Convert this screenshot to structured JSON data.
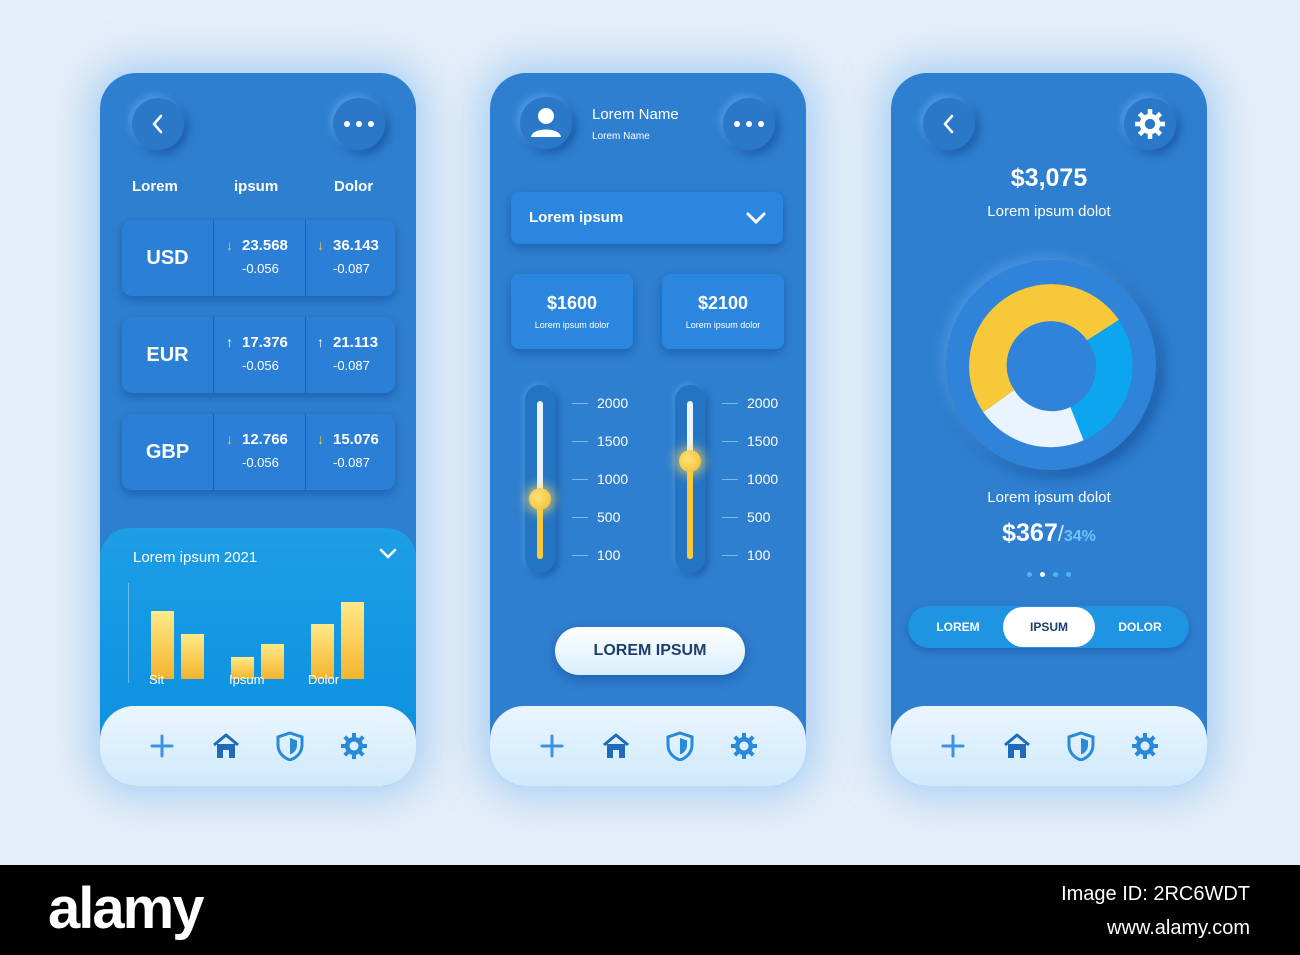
{
  "phone1": {
    "col_headers": [
      "Lorem",
      "ipsum",
      "Dolor"
    ],
    "currencies": [
      {
        "code": "USD",
        "v1": "23.568",
        "c1": "-0.056",
        "d1": "down",
        "v2": "36.143",
        "c2": "-0.087",
        "d2": "down"
      },
      {
        "code": "EUR",
        "v1": "17.376",
        "c1": "-0.056",
        "d1": "up",
        "v2": "21.113",
        "c2": "-0.087",
        "d2": "up"
      },
      {
        "code": "GBP",
        "v1": "12.766",
        "c1": "-0.056",
        "d1": "down",
        "v2": "15.076",
        "c2": "-0.087",
        "d2": "down"
      }
    ],
    "arrow_up": "↑",
    "arrow_down": "↓",
    "panel_title": "Lorem ipsum 2021",
    "bar_labels": [
      "Sit",
      "Ipsum",
      "Dolor"
    ]
  },
  "phone2": {
    "user_name": "Lorem Name",
    "user_sub": "Lorem Name",
    "dropdown_label": "Lorem ipsum",
    "amounts": [
      {
        "value": "$1600",
        "caption": "Lorem ipsum dolor"
      },
      {
        "value": "$2100",
        "caption": "Lorem ipsum dolor"
      }
    ],
    "scale": [
      "2000",
      "1500",
      "1000",
      "500",
      "100"
    ],
    "slider_levels": [
      0.38,
      0.62
    ],
    "button_label": "LOREM IPSUM"
  },
  "phone3": {
    "total": "$3,075",
    "total_caption": "Lorem ipsum dolot",
    "sub_caption": "Lorem ipsum dolot",
    "sub_value": "$367",
    "sub_sep": "/",
    "sub_percent": "34%",
    "segments": [
      "LOREM",
      "IPSUM",
      "DOLOR"
    ],
    "selected_segment": "IPSUM"
  },
  "nav_icons": [
    "plus-icon",
    "home-icon",
    "shield-icon",
    "gear-icon"
  ],
  "colors": {
    "yellow": "#f7c83a",
    "cyan": "#0ba5f0",
    "white": "#eaf4ff",
    "phone_bg": "#2f7fd0"
  },
  "watermark": {
    "brand": "alamy",
    "image_id": "Image ID: 2RC6WDT",
    "site": "www.alamy.com"
  }
}
